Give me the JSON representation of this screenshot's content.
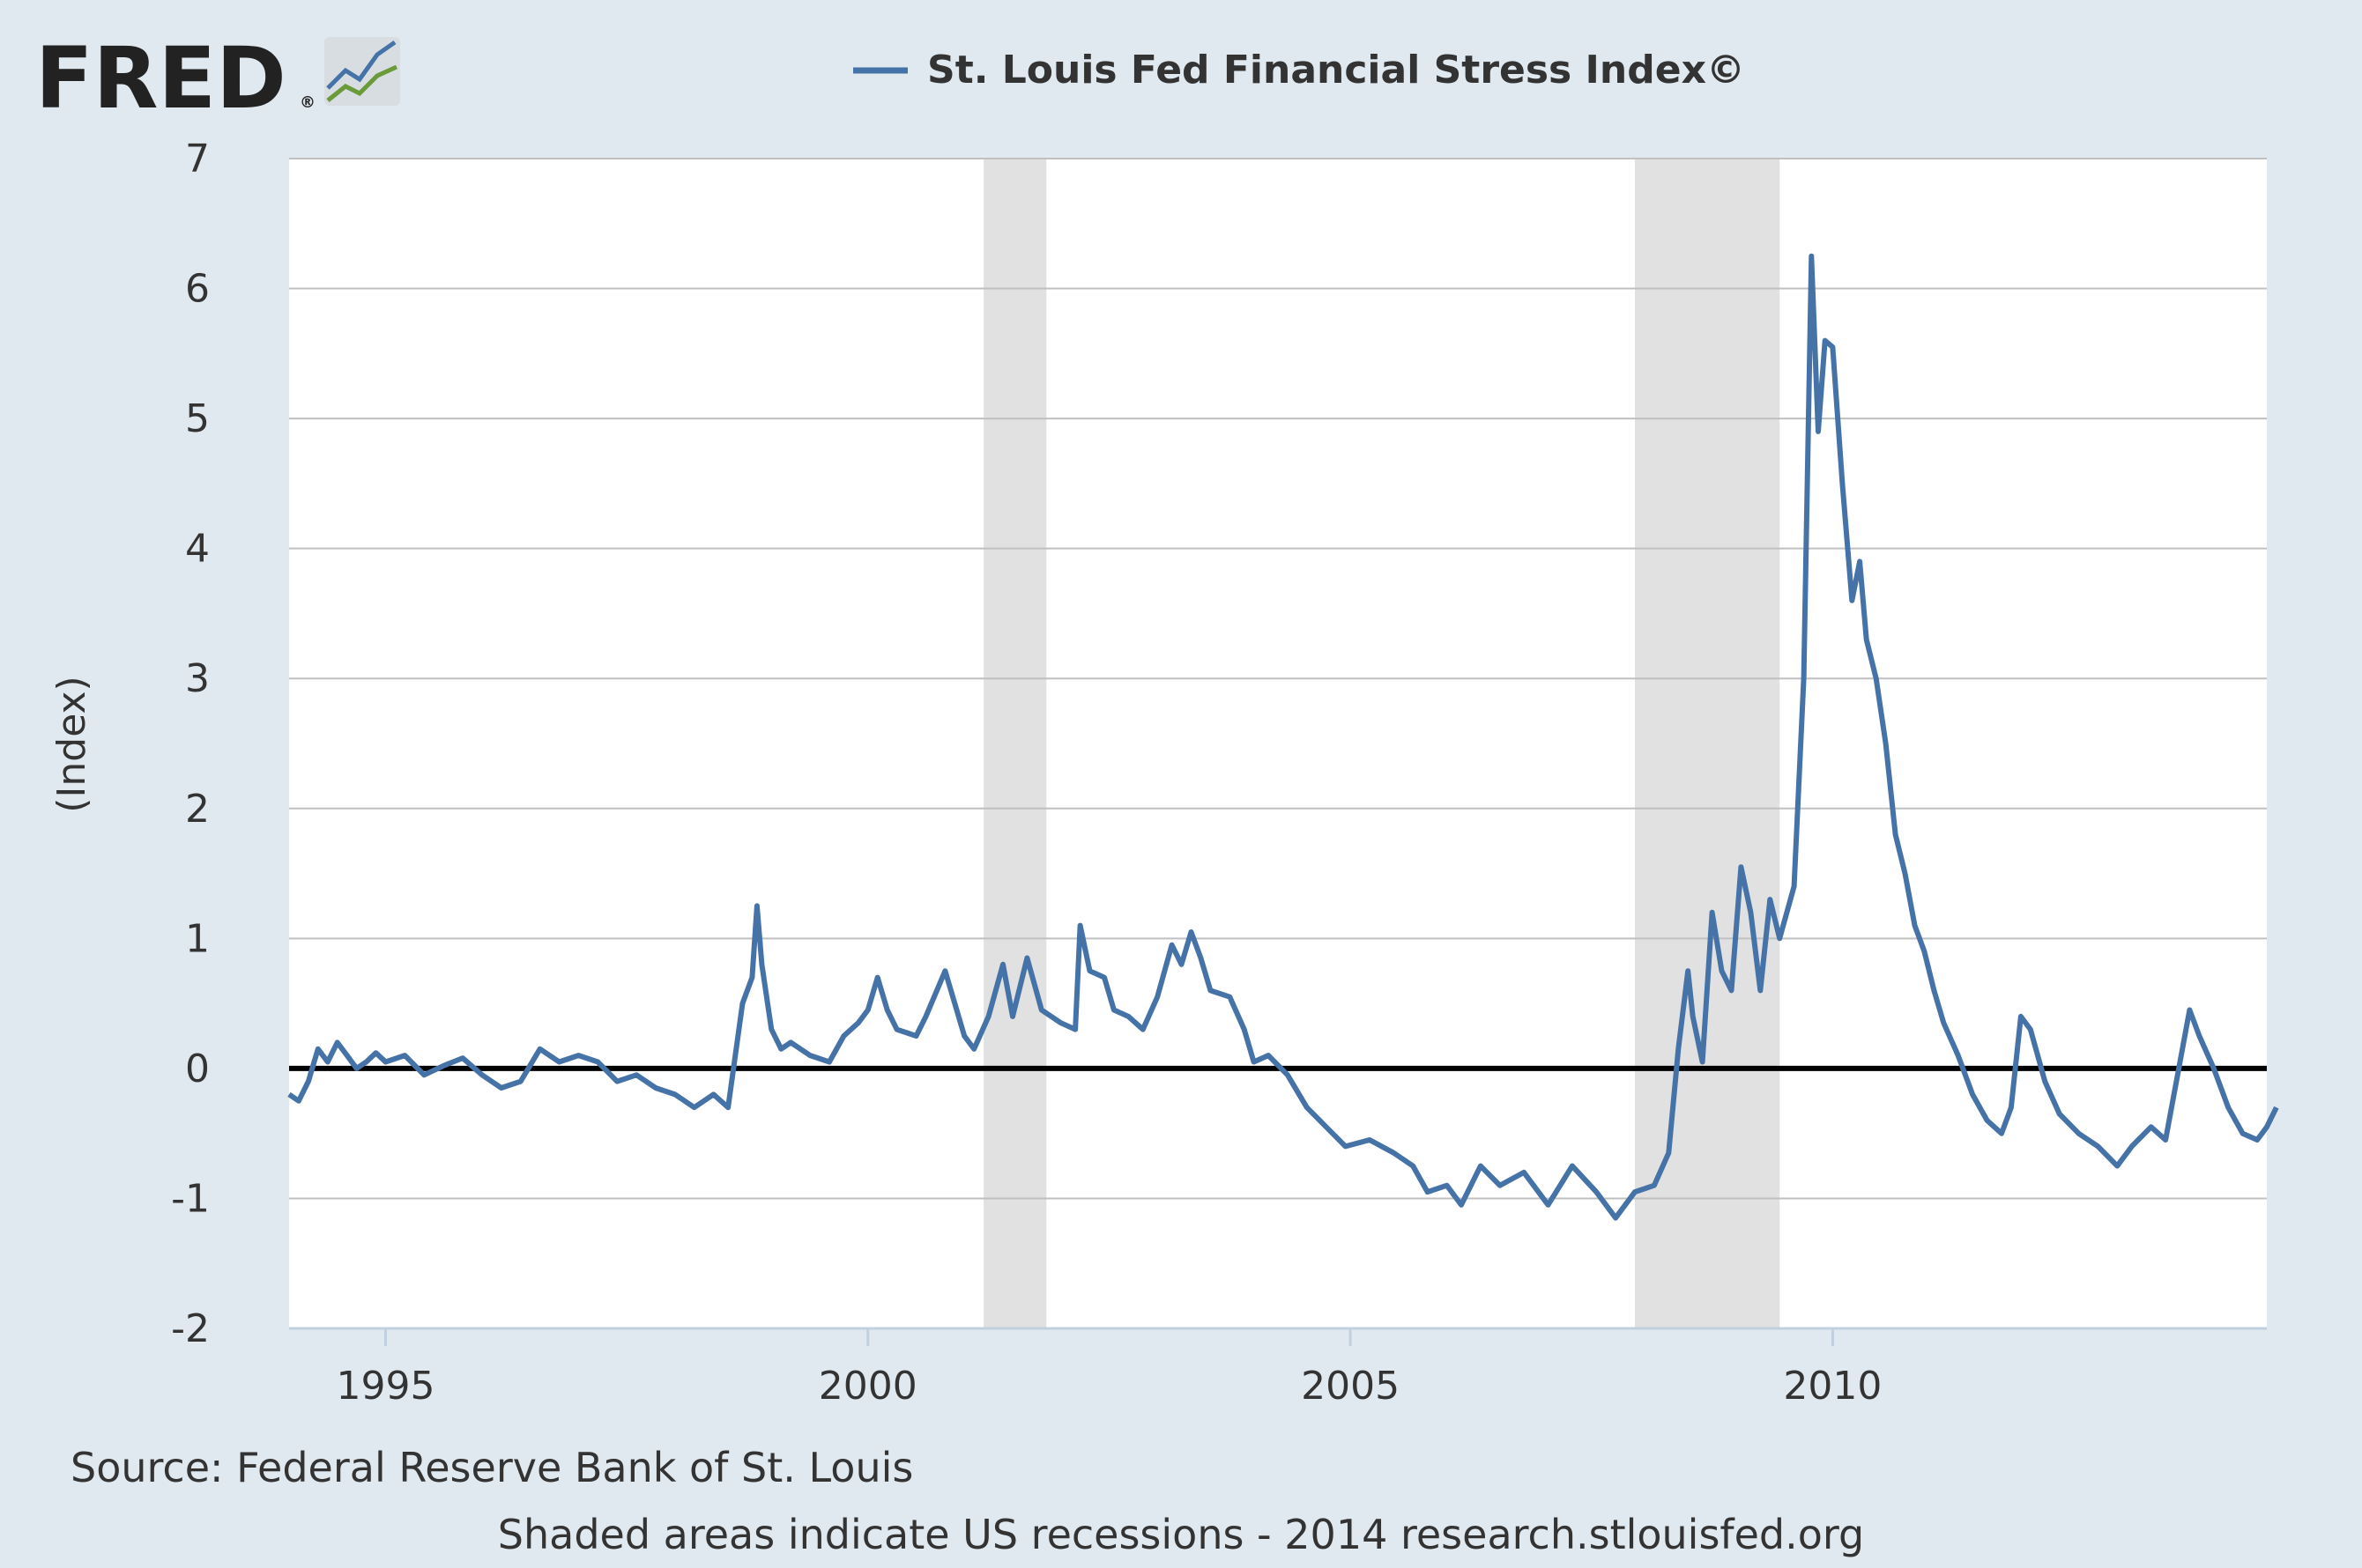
{
  "logo": {
    "text": "FRED",
    "mark": "®",
    "icon": "fred-chart-logo-icon"
  },
  "colors": {
    "background": "#e1e9f0",
    "plot_background": "#ffffff",
    "series": "#4572a7",
    "recession": "#e1e1e1",
    "grid": "#c0c0c0",
    "zero_line": "#000000",
    "text": "#333333"
  },
  "footer": {
    "source": "Source: Federal Reserve Bank of St. Louis",
    "note": "Shaded areas indicate US recessions - 2014 research.stlouisfed.org"
  },
  "chart_data": {
    "type": "line",
    "title": "",
    "xlabel": "",
    "ylabel": "(Index)",
    "legend": "top",
    "grid": true,
    "xlim": [
      1994.0,
      2014.5
    ],
    "ylim": [
      -2,
      7
    ],
    "y_ticks": [
      -2,
      -1,
      0,
      1,
      2,
      3,
      4,
      5,
      6,
      7
    ],
    "x_ticks": [
      1995,
      2000,
      2005,
      2010
    ],
    "recessions": [
      [
        2001.2,
        2001.85
      ],
      [
        2007.95,
        2009.45
      ]
    ],
    "reference_line": 0,
    "series": [
      {
        "name": "St. Louis Fed Financial Stress Index©",
        "points": [
          [
            1994.0,
            -0.2
          ],
          [
            1994.1,
            -0.25
          ],
          [
            1994.2,
            -0.1
          ],
          [
            1994.3,
            0.15
          ],
          [
            1994.4,
            0.05
          ],
          [
            1994.5,
            0.2
          ],
          [
            1994.6,
            0.1
          ],
          [
            1994.7,
            0.0
          ],
          [
            1994.8,
            0.05
          ],
          [
            1994.9,
            0.12
          ],
          [
            1995.0,
            0.05
          ],
          [
            1995.2,
            0.1
          ],
          [
            1995.4,
            -0.05
          ],
          [
            1995.6,
            0.02
          ],
          [
            1995.8,
            0.08
          ],
          [
            1996.0,
            -0.05
          ],
          [
            1996.2,
            -0.15
          ],
          [
            1996.4,
            -0.1
          ],
          [
            1996.6,
            0.15
          ],
          [
            1996.8,
            0.05
          ],
          [
            1997.0,
            0.1
          ],
          [
            1997.2,
            0.05
          ],
          [
            1997.4,
            -0.1
          ],
          [
            1997.6,
            -0.05
          ],
          [
            1997.8,
            -0.15
          ],
          [
            1998.0,
            -0.2
          ],
          [
            1998.2,
            -0.3
          ],
          [
            1998.4,
            -0.2
          ],
          [
            1998.55,
            -0.3
          ],
          [
            1998.7,
            0.5
          ],
          [
            1998.8,
            0.7
          ],
          [
            1998.85,
            1.25
          ],
          [
            1998.9,
            0.8
          ],
          [
            1999.0,
            0.3
          ],
          [
            1999.1,
            0.15
          ],
          [
            1999.2,
            0.2
          ],
          [
            1999.4,
            0.1
          ],
          [
            1999.6,
            0.05
          ],
          [
            1999.75,
            0.25
          ],
          [
            1999.9,
            0.35
          ],
          [
            2000.0,
            0.45
          ],
          [
            2000.1,
            0.7
          ],
          [
            2000.2,
            0.45
          ],
          [
            2000.3,
            0.3
          ],
          [
            2000.5,
            0.25
          ],
          [
            2000.6,
            0.4
          ],
          [
            2000.8,
            0.75
          ],
          [
            2000.9,
            0.5
          ],
          [
            2001.0,
            0.25
          ],
          [
            2001.1,
            0.15
          ],
          [
            2001.25,
            0.4
          ],
          [
            2001.4,
            0.8
          ],
          [
            2001.5,
            0.4
          ],
          [
            2001.65,
            0.85
          ],
          [
            2001.8,
            0.45
          ],
          [
            2002.0,
            0.35
          ],
          [
            2002.15,
            0.3
          ],
          [
            2002.2,
            1.1
          ],
          [
            2002.3,
            0.75
          ],
          [
            2002.45,
            0.7
          ],
          [
            2002.55,
            0.45
          ],
          [
            2002.7,
            0.4
          ],
          [
            2002.85,
            0.3
          ],
          [
            2003.0,
            0.55
          ],
          [
            2003.15,
            0.95
          ],
          [
            2003.25,
            0.8
          ],
          [
            2003.35,
            1.05
          ],
          [
            2003.45,
            0.85
          ],
          [
            2003.55,
            0.6
          ],
          [
            2003.75,
            0.55
          ],
          [
            2003.9,
            0.3
          ],
          [
            2004.0,
            0.05
          ],
          [
            2004.15,
            0.1
          ],
          [
            2004.35,
            -0.05
          ],
          [
            2004.55,
            -0.3
          ],
          [
            2004.75,
            -0.45
          ],
          [
            2004.95,
            -0.6
          ],
          [
            2005.2,
            -0.55
          ],
          [
            2005.45,
            -0.65
          ],
          [
            2005.65,
            -0.75
          ],
          [
            2005.8,
            -0.95
          ],
          [
            2006.0,
            -0.9
          ],
          [
            2006.15,
            -1.05
          ],
          [
            2006.35,
            -0.75
          ],
          [
            2006.55,
            -0.9
          ],
          [
            2006.8,
            -0.8
          ],
          [
            2007.05,
            -1.05
          ],
          [
            2007.3,
            -0.75
          ],
          [
            2007.55,
            -0.95
          ],
          [
            2007.75,
            -1.15
          ],
          [
            2007.95,
            -0.95
          ],
          [
            2008.15,
            -0.9
          ],
          [
            2008.3,
            -0.65
          ],
          [
            2008.4,
            0.15
          ],
          [
            2008.5,
            0.75
          ],
          [
            2008.55,
            0.4
          ],
          [
            2008.65,
            0.05
          ],
          [
            2008.75,
            1.2
          ],
          [
            2008.85,
            0.75
          ],
          [
            2008.95,
            0.6
          ],
          [
            2009.05,
            1.55
          ],
          [
            2009.15,
            1.2
          ],
          [
            2009.25,
            0.6
          ],
          [
            2009.35,
            1.3
          ],
          [
            2009.45,
            1.0
          ],
          [
            2009.6,
            1.4
          ],
          [
            2009.7,
            3.0
          ],
          [
            2009.78,
            6.25
          ],
          [
            2009.85,
            4.9
          ],
          [
            2009.92,
            5.6
          ],
          [
            2010.0,
            5.55
          ],
          [
            2010.1,
            4.5
          ],
          [
            2010.2,
            3.6
          ],
          [
            2010.28,
            3.9
          ],
          [
            2010.35,
            3.3
          ],
          [
            2010.45,
            3.0
          ],
          [
            2010.55,
            2.5
          ],
          [
            2010.65,
            1.8
          ],
          [
            2010.75,
            1.5
          ],
          [
            2010.85,
            1.1
          ],
          [
            2010.95,
            0.9
          ],
          [
            2011.05,
            0.6
          ],
          [
            2011.15,
            0.35
          ],
          [
            2011.3,
            0.1
          ],
          [
            2011.45,
            -0.2
          ],
          [
            2011.6,
            -0.4
          ],
          [
            2011.75,
            -0.5
          ],
          [
            2011.85,
            -0.3
          ],
          [
            2011.95,
            0.4
          ],
          [
            2012.05,
            0.3
          ],
          [
            2012.2,
            -0.1
          ],
          [
            2012.35,
            -0.35
          ],
          [
            2012.55,
            -0.5
          ],
          [
            2012.75,
            -0.6
          ],
          [
            2012.95,
            -0.75
          ],
          [
            2013.1,
            -0.6
          ],
          [
            2013.3,
            -0.45
          ],
          [
            2013.45,
            -0.55
          ],
          [
            2013.6,
            0.05
          ],
          [
            2013.7,
            0.45
          ],
          [
            2013.8,
            0.25
          ],
          [
            2013.95,
            0.0
          ],
          [
            2014.1,
            -0.3
          ],
          [
            2014.25,
            -0.5
          ],
          [
            2014.4,
            -0.55
          ],
          [
            2014.5,
            -0.45
          ],
          [
            2014.6,
            -0.3
          ]
        ]
      }
    ]
  }
}
